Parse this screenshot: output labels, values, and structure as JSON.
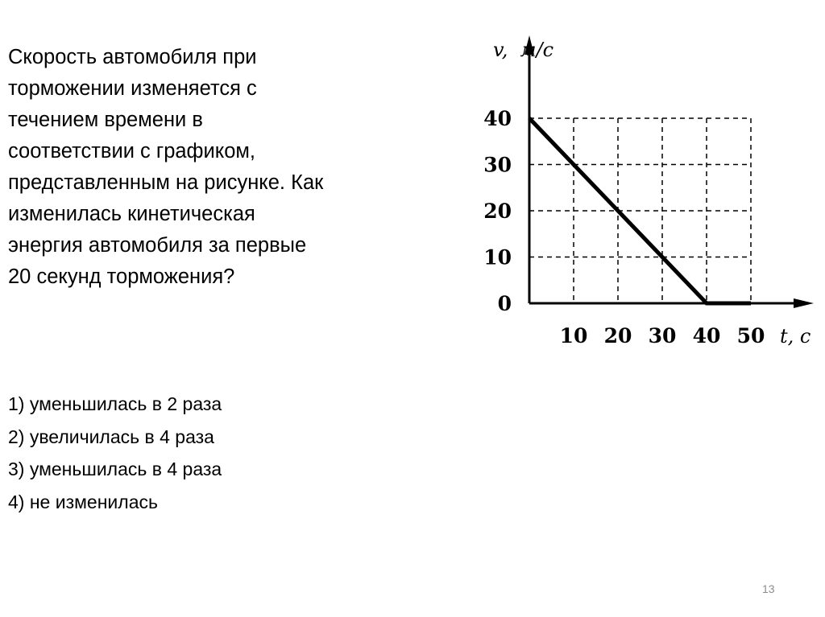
{
  "question": {
    "lines": [
      "Скорость автомобиля при",
      "торможении изменяется с",
      "течением времени в",
      "соответствии с графиком,",
      "представленным на рисунке. Как",
      "изменилась кинетическая",
      "энергия автомобиля за первые",
      "20 секунд торможения?"
    ]
  },
  "options": [
    "1) уменьшилась в 2 раза",
    "2) увеличилась в 4 раза",
    "3) уменьшилась в 4 раза",
    "4) не изменилась"
  ],
  "page_number": "13",
  "chart_data": {
    "type": "line",
    "xlabel": "t, c",
    "ylabel": "v,  м/c",
    "x_ticks": [
      "10",
      "20",
      "30",
      "40",
      "50"
    ],
    "y_ticks": [
      "0",
      "10",
      "20",
      "30",
      "40"
    ],
    "xlim": [
      0,
      50
    ],
    "ylim": [
      0,
      40
    ],
    "grid": "dashed",
    "series": [
      {
        "x": [
          0,
          40,
          50
        ],
        "y": [
          40,
          0,
          0
        ]
      }
    ]
  }
}
